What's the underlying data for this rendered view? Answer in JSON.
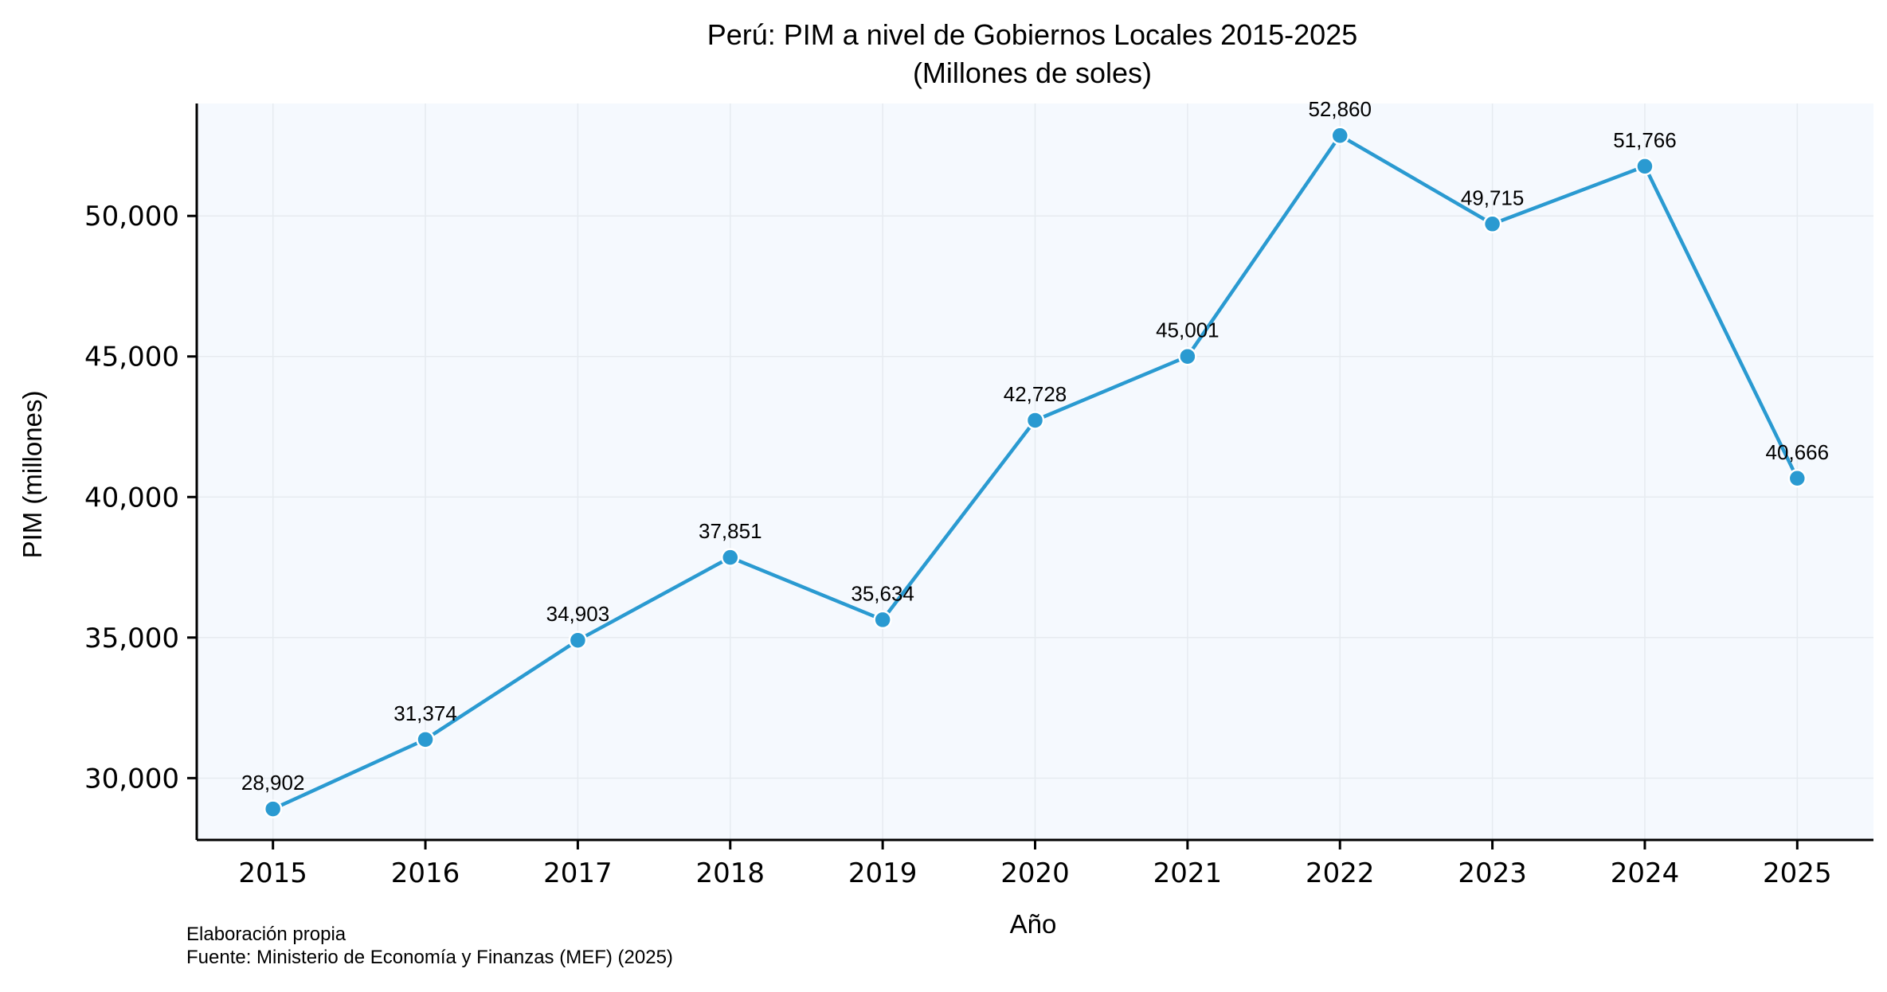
{
  "chart_data": {
    "type": "line",
    "title": "Perú: PIM a nivel de Gobiernos Locales 2015-2025",
    "subtitle": "(Millones de soles)",
    "xlabel": "Año",
    "ylabel": "PIM (millones)",
    "x": [
      2015,
      2016,
      2017,
      2018,
      2019,
      2020,
      2021,
      2022,
      2023,
      2024,
      2025
    ],
    "series": [
      {
        "values": [
          28902,
          31374,
          34903,
          37851,
          35634,
          42728,
          45001,
          52860,
          49715,
          51766,
          40666
        ],
        "labels": [
          "28,902",
          "31,374",
          "34,903",
          "37,851",
          "35,634",
          "42,728",
          "45,001",
          "52,860",
          "49,715",
          "51,766",
          "40,666"
        ]
      }
    ],
    "x_tick_labels": [
      "2015",
      "2016",
      "2017",
      "2018",
      "2019",
      "2020",
      "2021",
      "2022",
      "2023",
      "2024",
      "2025"
    ],
    "y_ticks": [
      30000,
      35000,
      40000,
      45000,
      50000
    ],
    "y_tick_labels": [
      "30,000",
      "35,000",
      "40,000",
      "45,000",
      "50,000"
    ],
    "ylim": [
      27800,
      54000
    ],
    "xlim": [
      2014.5,
      2025.5
    ],
    "grid": true,
    "colors": {
      "line": "#2a9ad1",
      "plot_background": "#f5f9fe",
      "grid": "#e6ebf0"
    }
  },
  "notes": {
    "line1": "Elaboración propia",
    "line2": "Fuente: Ministerio de Economía y Finanzas (MEF) (2025)"
  }
}
